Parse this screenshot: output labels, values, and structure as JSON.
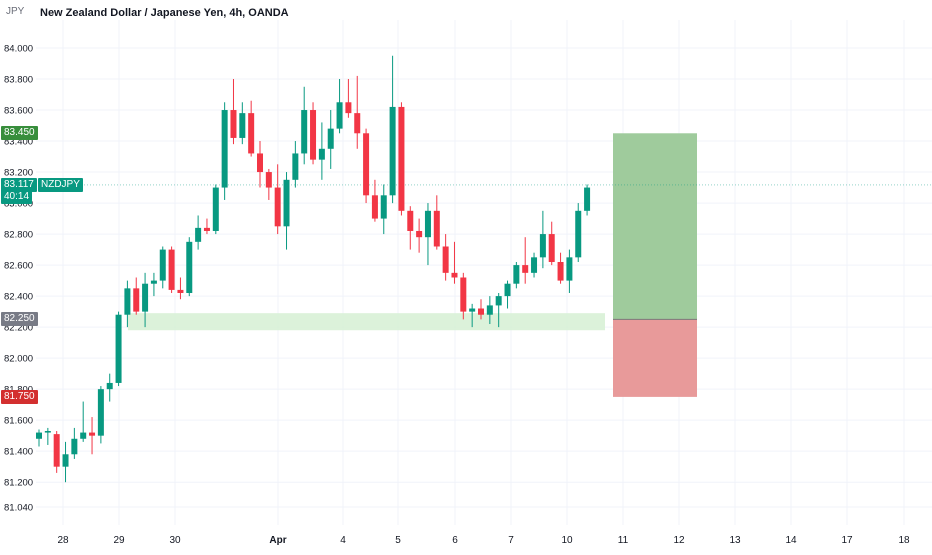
{
  "header": {
    "title": "New Zealand Dollar / Japanese Yen, 4h, OANDA"
  },
  "axis": {
    "unit": "JPY"
  },
  "price_tags": {
    "target": {
      "value": "83.450",
      "color": "#388e3c"
    },
    "current": {
      "value": "83.117",
      "color": "#089981",
      "symbol": "NZDJPY",
      "countdown": "40:14"
    },
    "entry": {
      "value": "82.250",
      "color": "#787b86"
    },
    "stop": {
      "value": "81.750",
      "color": "#d32f2f"
    }
  },
  "colors": {
    "up": "#089981",
    "down": "#f23645",
    "support_zone": "#d6f0d4",
    "profit_zone": "#9fcb9c",
    "loss_zone": "#e89a9a"
  },
  "chart_data": {
    "type": "candlestick",
    "title": "New Zealand Dollar / Japanese Yen, 4h, OANDA",
    "symbol": "NZDJPY",
    "timeframe": "4h",
    "ylabel": "JPY",
    "ylim": [
      81.0,
      84.1
    ],
    "y_ticks": [
      "84.000",
      "83.800",
      "83.600",
      "83.400",
      "83.200",
      "83.000",
      "82.800",
      "82.600",
      "82.400",
      "82.200",
      "82.000",
      "81.800",
      "81.600",
      "81.400",
      "81.200",
      "81.040"
    ],
    "x_ticks": [
      "28",
      "29",
      "30",
      "Apr",
      "4",
      "5",
      "6",
      "7",
      "10",
      "11",
      "12",
      "13",
      "14",
      "17",
      "18"
    ],
    "grid": true,
    "candles": [
      [
        81.48,
        81.54,
        81.43,
        81.52
      ],
      [
        81.52,
        81.55,
        81.44,
        81.53
      ],
      [
        81.51,
        81.53,
        81.26,
        81.3
      ],
      [
        81.3,
        81.46,
        81.2,
        81.38
      ],
      [
        81.38,
        81.55,
        81.35,
        81.48
      ],
      [
        81.48,
        81.72,
        81.46,
        81.52
      ],
      [
        81.52,
        81.62,
        81.38,
        81.5
      ],
      [
        81.5,
        81.82,
        81.45,
        81.8
      ],
      [
        81.8,
        81.9,
        81.72,
        81.84
      ],
      [
        81.84,
        82.3,
        81.82,
        82.28
      ],
      [
        82.28,
        82.5,
        82.2,
        82.45
      ],
      [
        82.45,
        82.52,
        82.28,
        82.3
      ],
      [
        82.3,
        82.55,
        82.2,
        82.48
      ],
      [
        82.48,
        82.55,
        82.4,
        82.5
      ],
      [
        82.5,
        82.72,
        82.45,
        82.7
      ],
      [
        82.7,
        82.72,
        82.42,
        82.44
      ],
      [
        82.44,
        82.52,
        82.38,
        82.42
      ],
      [
        82.42,
        82.78,
        82.4,
        82.75
      ],
      [
        82.75,
        82.92,
        82.7,
        82.84
      ],
      [
        82.84,
        82.9,
        82.8,
        82.82
      ],
      [
        82.82,
        83.12,
        82.8,
        83.1
      ],
      [
        83.1,
        83.65,
        83.02,
        83.6
      ],
      [
        83.6,
        83.8,
        83.38,
        83.42
      ],
      [
        83.42,
        83.65,
        83.38,
        83.58
      ],
      [
        83.58,
        83.66,
        83.3,
        83.32
      ],
      [
        83.32,
        83.4,
        83.1,
        83.2
      ],
      [
        83.2,
        83.22,
        83.02,
        83.1
      ],
      [
        83.1,
        83.25,
        82.8,
        82.85
      ],
      [
        82.85,
        83.2,
        82.7,
        83.15
      ],
      [
        83.15,
        83.4,
        83.1,
        83.32
      ],
      [
        83.32,
        83.75,
        83.25,
        83.6
      ],
      [
        83.6,
        83.65,
        83.25,
        83.28
      ],
      [
        83.28,
        83.52,
        83.15,
        83.35
      ],
      [
        83.35,
        83.6,
        83.22,
        83.48
      ],
      [
        83.48,
        83.8,
        83.45,
        83.65
      ],
      [
        83.65,
        83.8,
        83.55,
        83.58
      ],
      [
        83.58,
        83.82,
        83.35,
        83.45
      ],
      [
        83.45,
        83.48,
        83.0,
        83.05
      ],
      [
        83.05,
        83.15,
        82.88,
        82.9
      ],
      [
        82.9,
        83.12,
        82.8,
        83.05
      ],
      [
        83.05,
        83.95,
        83.0,
        83.62
      ],
      [
        83.62,
        83.65,
        82.92,
        82.95
      ],
      [
        82.95,
        82.98,
        82.7,
        82.82
      ],
      [
        82.82,
        82.9,
        82.68,
        82.78
      ],
      [
        82.78,
        83.0,
        82.6,
        82.95
      ],
      [
        82.95,
        83.05,
        82.7,
        82.72
      ],
      [
        82.72,
        82.8,
        82.5,
        82.55
      ],
      [
        82.55,
        82.75,
        82.48,
        82.52
      ],
      [
        82.52,
        82.55,
        82.25,
        82.3
      ],
      [
        82.3,
        82.35,
        82.2,
        82.32
      ],
      [
        82.32,
        82.38,
        82.25,
        82.28
      ],
      [
        82.28,
        82.4,
        82.22,
        82.34
      ],
      [
        82.34,
        82.42,
        82.2,
        82.4
      ],
      [
        82.4,
        82.5,
        82.32,
        82.48
      ],
      [
        82.48,
        82.62,
        82.45,
        82.6
      ],
      [
        82.6,
        82.78,
        82.48,
        82.55
      ],
      [
        82.55,
        82.68,
        82.52,
        82.65
      ],
      [
        82.65,
        82.95,
        82.58,
        82.8
      ],
      [
        82.8,
        82.88,
        82.6,
        82.62
      ],
      [
        82.62,
        82.68,
        82.48,
        82.5
      ],
      [
        82.5,
        82.7,
        82.42,
        82.65
      ],
      [
        82.65,
        83.0,
        82.62,
        82.95
      ],
      [
        82.95,
        83.12,
        82.92,
        83.1
      ]
    ],
    "support_zone": {
      "from": 82.18,
      "to": 82.29
    },
    "position": {
      "entry": 82.25,
      "target": 83.45,
      "stop": 81.75
    },
    "current_price": 83.117
  }
}
